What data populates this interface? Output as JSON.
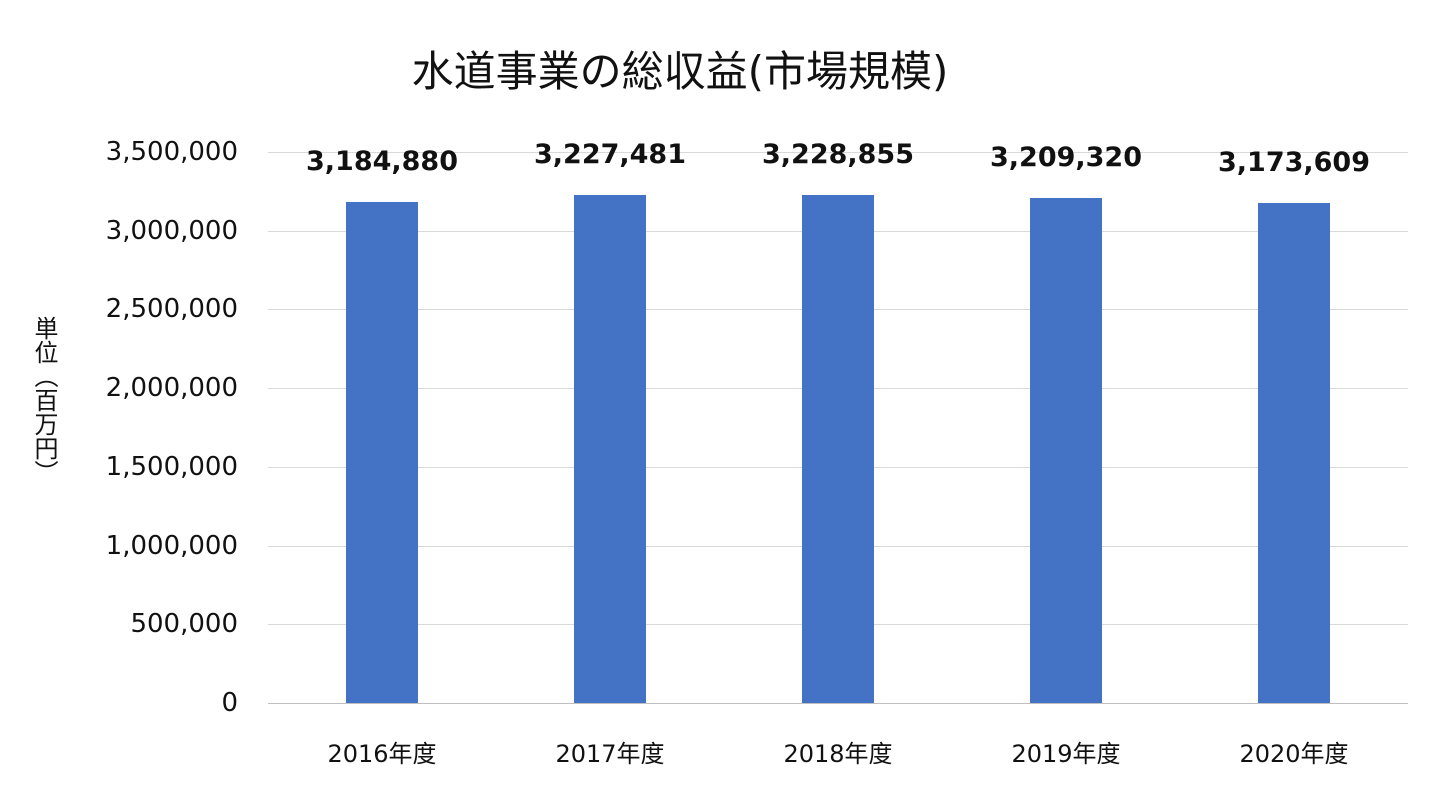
{
  "chart_data": {
    "type": "bar",
    "title": "水道事業の総収益(市場規模)",
    "xlabel": "",
    "ylabel": "単位（百万円）",
    "categories": [
      "2016年度",
      "2017年度",
      "2018年度",
      "2019年度",
      "2020年度"
    ],
    "values": [
      3184880,
      3227481,
      3228855,
      3209320,
      3173609
    ],
    "data_labels": [
      "3,184,880",
      "3,227,481",
      "3,228,855",
      "3,209,320",
      "3,173,609"
    ],
    "ylim": [
      0,
      3500000
    ],
    "yticks": [
      0,
      500000,
      1000000,
      1500000,
      2000000,
      2500000,
      3000000,
      3500000
    ],
    "ytick_labels": [
      "0",
      "500,000",
      "1,000,000",
      "1,500,000",
      "2,000,000",
      "2,500,000",
      "3,000,000",
      "3,500,000"
    ],
    "grid": true,
    "legend": null,
    "bar_color": "#4472c4"
  }
}
